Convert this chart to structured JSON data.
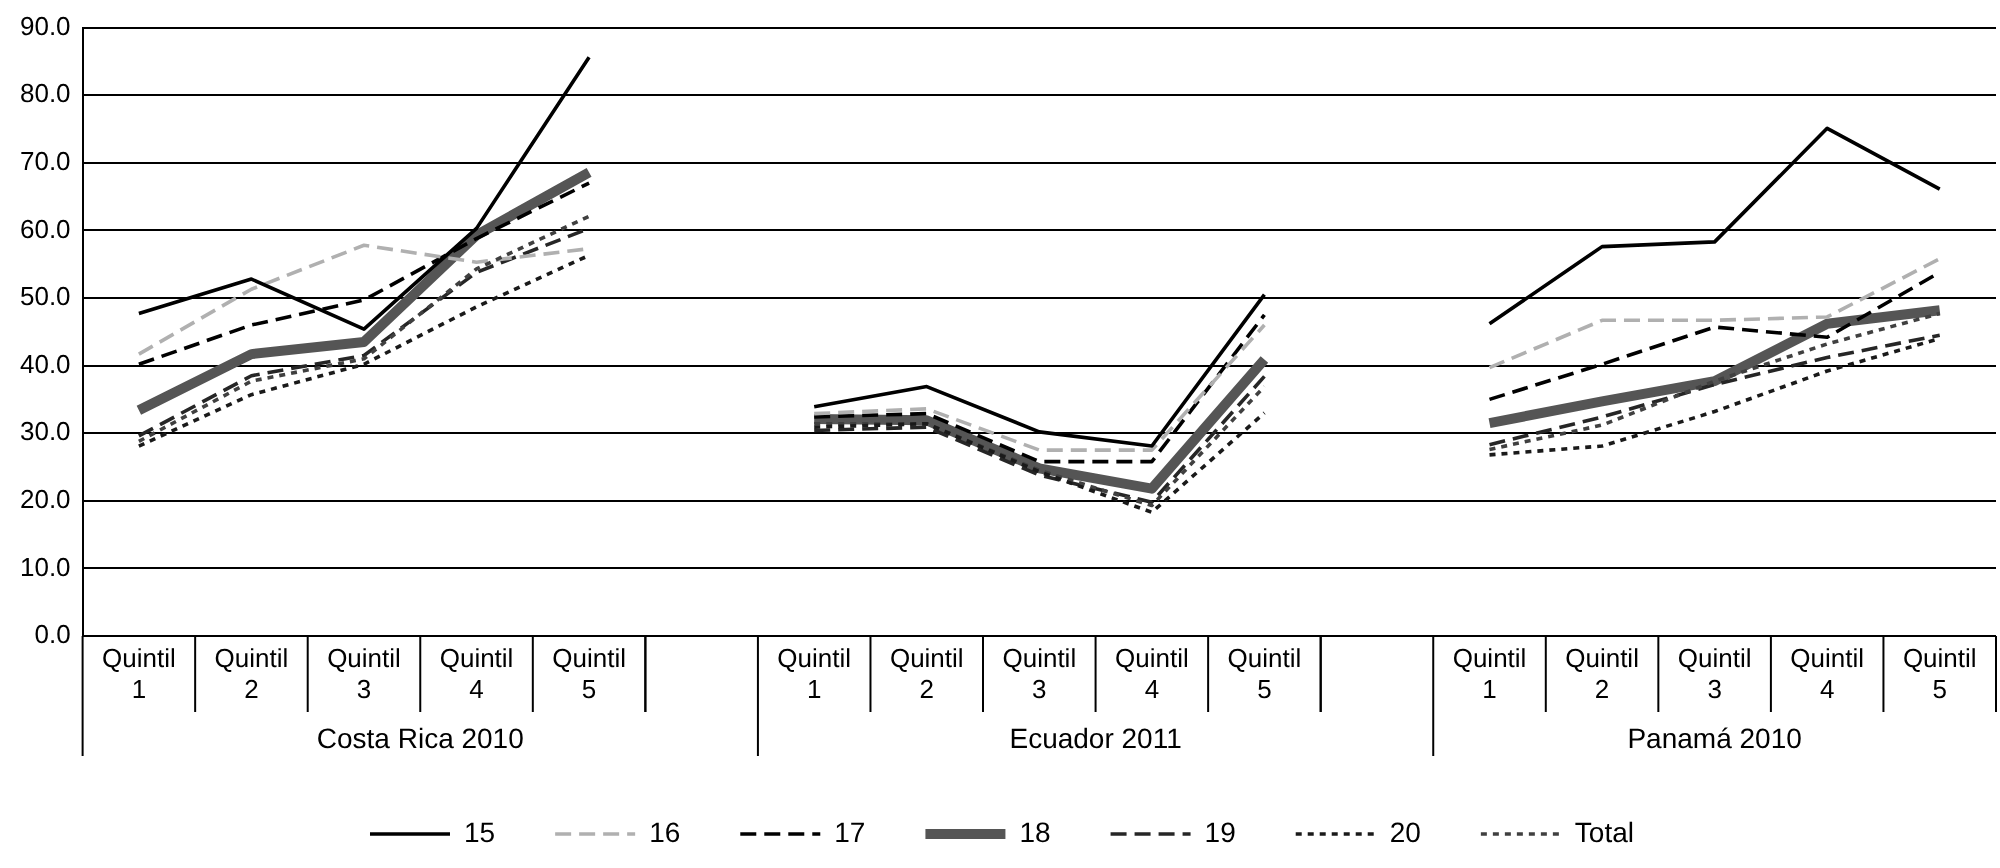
{
  "chart_data": {
    "type": "line",
    "categories": [
      "Quintil 1",
      "Quintil 2",
      "Quintil 3",
      "Quintil 4",
      "Quintil 5",
      null,
      "Quintil 1",
      "Quintil 2",
      "Quintil 3",
      "Quintil 4",
      "Quintil 5",
      null,
      "Quintil 1",
      "Quintil 2",
      "Quintil 3",
      "Quintil 4",
      "Quintil 5"
    ],
    "series": [
      {
        "name": "15",
        "color": "#000000",
        "line_style": "solid",
        "values": [
          47.7,
          52.8,
          45.4,
          60.3,
          85.6,
          null,
          33.9,
          36.9,
          30.2,
          28.1,
          50.5,
          null,
          46.2,
          57.6,
          58.3,
          75.1,
          66.1
        ]
      },
      {
        "name": "16",
        "color": "#b0b0b0",
        "line_style": "dashed",
        "values": [
          41.7,
          51.3,
          57.8,
          55.3,
          57.3,
          null,
          32.9,
          33.6,
          27.5,
          27.5,
          46.0,
          null,
          39.7,
          46.7,
          46.7,
          47.2,
          55.8
        ]
      },
      {
        "name": "17",
        "color": "#000000",
        "line_style": "dashed",
        "values": [
          40.2,
          46.0,
          49.7,
          58.8,
          67.0,
          null,
          32.4,
          32.9,
          25.8,
          25.8,
          47.5,
          null,
          35.0,
          40.2,
          45.7,
          44.2,
          53.8
        ]
      },
      {
        "name": "18",
        "color": "#555555",
        "line_style": "solid",
        "values": [
          33.4,
          41.7,
          43.5,
          59.3,
          68.6,
          null,
          32.1,
          31.9,
          24.8,
          21.8,
          40.9,
          null,
          31.5,
          34.7,
          37.7,
          46.2,
          48.2
        ]
      },
      {
        "name": "19",
        "color": "#262626",
        "line_style": "dashed",
        "values": [
          29.6,
          38.5,
          41.5,
          53.8,
          60.3,
          null,
          30.4,
          30.9,
          23.8,
          19.8,
          38.4,
          null,
          28.3,
          32.4,
          37.2,
          41.2,
          44.5
        ]
      },
      {
        "name": "20",
        "color": "#1a1a1a",
        "line_style": "dotted",
        "values": [
          28.1,
          35.7,
          40.2,
          48.7,
          56.3,
          null,
          30.9,
          31.4,
          24.3,
          18.3,
          33.0,
          null,
          26.8,
          28.1,
          33.2,
          39.2,
          44.0
        ]
      },
      {
        "name": "Total",
        "color": "#404040",
        "line_style": "dotted",
        "values": [
          28.8,
          37.7,
          41.0,
          54.3,
          62.1,
          null,
          31.4,
          31.4,
          24.5,
          19.3,
          36.9,
          null,
          27.6,
          31.2,
          37.7,
          43.2,
          47.7
        ]
      }
    ],
    "annotations": [
      "Costa Rica 2010",
      "Ecuador 2011",
      "Panamá 2010"
    ],
    "ylim": [
      0,
      90
    ],
    "yticks": [
      {
        "value": 0,
        "label": "0.0"
      },
      {
        "value": 10,
        "label": "10.0"
      },
      {
        "value": 20,
        "label": "20.0"
      },
      {
        "value": 30,
        "label": "30.0"
      },
      {
        "value": 40,
        "label": "40.0"
      },
      {
        "value": 50,
        "label": "50.0"
      },
      {
        "value": 60,
        "label": "60.0"
      },
      {
        "value": 70,
        "label": "70.0"
      },
      {
        "value": 80,
        "label": "80.0"
      },
      {
        "value": 90,
        "label": "90.0"
      }
    ],
    "grid": "y",
    "legend": "bottom",
    "marker": "none"
  }
}
